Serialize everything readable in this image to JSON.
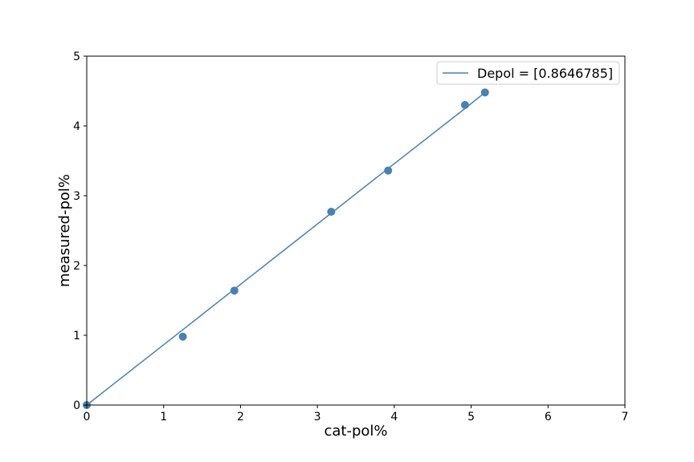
{
  "chart_data": {
    "type": "scatter",
    "xlabel": "cat-pol%",
    "ylabel": "measured-pol%",
    "xlim": [
      0,
      7
    ],
    "ylim": [
      0,
      5
    ],
    "x_ticks": [
      0,
      1,
      2,
      3,
      4,
      5,
      6,
      7
    ],
    "y_ticks": [
      0,
      1,
      2,
      3,
      4,
      5
    ],
    "grid": false,
    "legend_position": "top-right",
    "legend": [
      "Depol = [0.8646785]"
    ],
    "colors": {
      "series": "#4682b4",
      "axis": "#000000"
    },
    "series": [
      {
        "name": "Depol = [0.8646785]",
        "type": "line",
        "x": [
          0,
          1.25,
          1.92,
          3.18,
          3.92,
          4.92,
          5.18
        ],
        "y": [
          0,
          1.08,
          1.66,
          2.75,
          3.39,
          4.25,
          4.48
        ]
      },
      {
        "type": "scatter",
        "x": [
          0,
          1.25,
          1.92,
          3.18,
          3.92,
          4.92,
          5.18
        ],
        "y": [
          0,
          0.98,
          1.64,
          2.77,
          3.36,
          4.3,
          4.48
        ]
      }
    ]
  }
}
